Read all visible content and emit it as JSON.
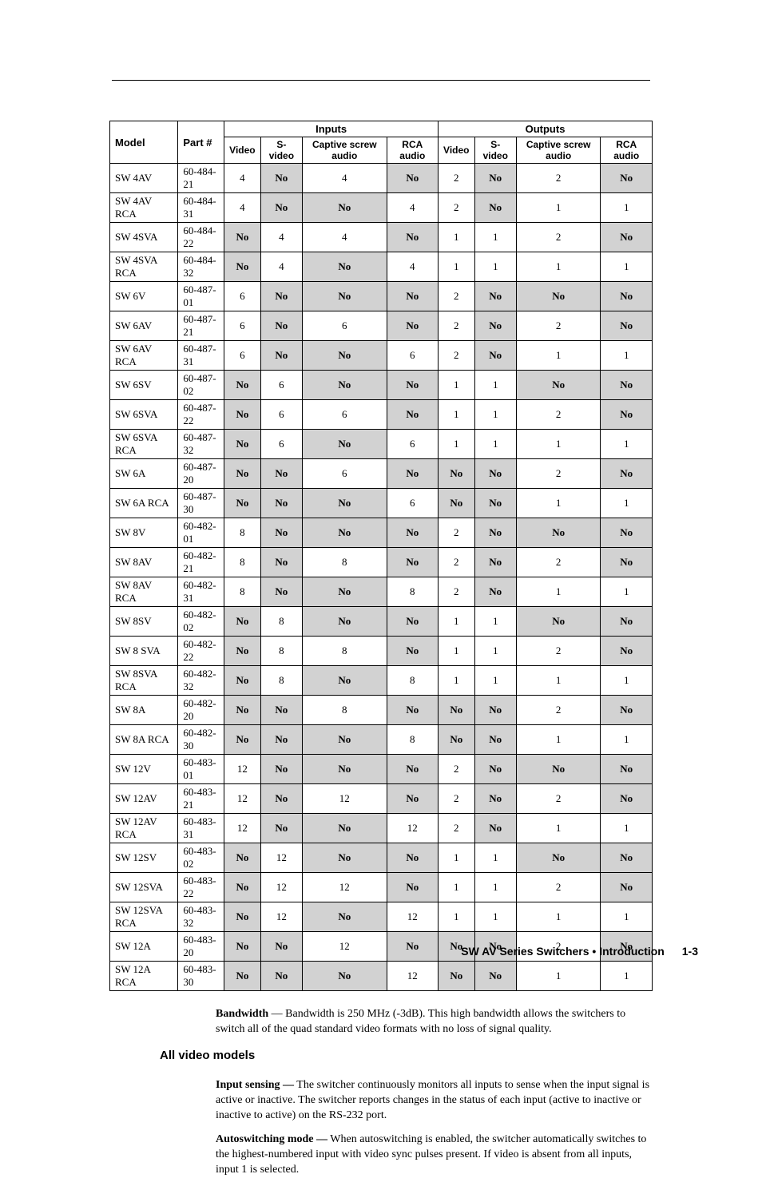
{
  "table": {
    "group_headers": {
      "inputs": "Inputs",
      "outputs": "Outputs"
    },
    "columns": [
      "Model",
      "Part #",
      "Video",
      "S-video",
      "Captive screw audio",
      "RCA audio",
      "Video",
      "S-video",
      "Captive screw audio",
      "RCA audio"
    ],
    "rows": [
      [
        "SW 4AV",
        "60-484-21",
        "4",
        "No",
        "4",
        "No",
        "2",
        "No",
        "2",
        "No"
      ],
      [
        "SW 4AV RCA",
        "60-484-31",
        "4",
        "No",
        "No",
        "4",
        "2",
        "No",
        "1",
        "1"
      ],
      [
        "SW 4SVA",
        "60-484-22",
        "No",
        "4",
        "4",
        "No",
        "1",
        "1",
        "2",
        "No"
      ],
      [
        "SW 4SVA RCA",
        "60-484-32",
        "No",
        "4",
        "No",
        "4",
        "1",
        "1",
        "1",
        "1"
      ],
      [
        "SW 6V",
        "60-487-01",
        "6",
        "No",
        "No",
        "No",
        "2",
        "No",
        "No",
        "No"
      ],
      [
        "SW 6AV",
        "60-487-21",
        "6",
        "No",
        "6",
        "No",
        "2",
        "No",
        "2",
        "No"
      ],
      [
        "SW 6AV RCA",
        "60-487-31",
        "6",
        "No",
        "No",
        "6",
        "2",
        "No",
        "1",
        "1"
      ],
      [
        "SW 6SV",
        "60-487-02",
        "No",
        "6",
        "No",
        "No",
        "1",
        "1",
        "No",
        "No"
      ],
      [
        "SW 6SVA",
        "60-487-22",
        "No",
        "6",
        "6",
        "No",
        "1",
        "1",
        "2",
        "No"
      ],
      [
        "SW 6SVA RCA",
        "60-487-32",
        "No",
        "6",
        "No",
        "6",
        "1",
        "1",
        "1",
        "1"
      ],
      [
        "SW 6A",
        "60-487-20",
        "No",
        "No",
        "6",
        "No",
        "No",
        "No",
        "2",
        "No"
      ],
      [
        "SW 6A RCA",
        "60-487-30",
        "No",
        "No",
        "No",
        "6",
        "No",
        "No",
        "1",
        "1"
      ],
      [
        "SW 8V",
        "60-482-01",
        "8",
        "No",
        "No",
        "No",
        "2",
        "No",
        "No",
        "No"
      ],
      [
        "SW 8AV",
        "60-482-21",
        "8",
        "No",
        "8",
        "No",
        "2",
        "No",
        "2",
        "No"
      ],
      [
        "SW 8AV RCA",
        "60-482-31",
        "8",
        "No",
        "No",
        "8",
        "2",
        "No",
        "1",
        "1"
      ],
      [
        "SW 8SV",
        "60-482-02",
        "No",
        "8",
        "No",
        "No",
        "1",
        "1",
        "No",
        "No"
      ],
      [
        "SW 8 SVA",
        "60-482-22",
        "No",
        "8",
        "8",
        "No",
        "1",
        "1",
        "2",
        "No"
      ],
      [
        "SW 8SVA RCA",
        "60-482-32",
        "No",
        "8",
        "No",
        "8",
        "1",
        "1",
        "1",
        "1"
      ],
      [
        "SW 8A",
        "60-482-20",
        "No",
        "No",
        "8",
        "No",
        "No",
        "No",
        "2",
        "No"
      ],
      [
        "SW 8A RCA",
        "60-482-30",
        "No",
        "No",
        "No",
        "8",
        "No",
        "No",
        "1",
        "1"
      ],
      [
        "SW 12V",
        "60-483-01",
        "12",
        "No",
        "No",
        "No",
        "2",
        "No",
        "No",
        "No"
      ],
      [
        "SW 12AV",
        "60-483-21",
        "12",
        "No",
        "12",
        "No",
        "2",
        "No",
        "2",
        "No"
      ],
      [
        "SW 12AV RCA",
        "60-483-31",
        "12",
        "No",
        "No",
        "12",
        "2",
        "No",
        "1",
        "1"
      ],
      [
        "SW 12SV",
        "60-483-02",
        "No",
        "12",
        "No",
        "No",
        "1",
        "1",
        "No",
        "No"
      ],
      [
        "SW 12SVA",
        "60-483-22",
        "No",
        "12",
        "12",
        "No",
        "1",
        "1",
        "2",
        "No"
      ],
      [
        "SW 12SVA RCA",
        "60-483-32",
        "No",
        "12",
        "No",
        "12",
        "1",
        "1",
        "1",
        "1"
      ],
      [
        "SW 12A",
        "60-483-20",
        "No",
        "No",
        "12",
        "No",
        "No",
        "No",
        "2",
        "No"
      ],
      [
        "SW 12A RCA",
        "60-483-30",
        "No",
        "No",
        "No",
        "12",
        "No",
        "No",
        "1",
        "1"
      ]
    ]
  },
  "bandwidth": {
    "term": "Bandwidth",
    "text": " — Bandwidth is 250 MHz (-3dB).  This high bandwidth allows the switchers to switch all of the quad standard video formats with no loss of signal quality."
  },
  "section_heading": "All video models",
  "input_sensing": {
    "term": "Input sensing —",
    "text": " The switcher continuously monitors all inputs to sense when the input signal is active or inactive.  The switcher reports changes in the status of each input (active to inactive or inactive to active) on the RS-232 port."
  },
  "autoswitching": {
    "term": "Autoswitching mode —",
    "text": " When autoswitching is enabled, the switcher automatically switches to the highest-numbered input with video sync pulses present.  If video is absent from all inputs, input 1 is selected."
  },
  "footer": {
    "title": "SW AV Series Switchers • Introduction",
    "page": "1-3"
  }
}
